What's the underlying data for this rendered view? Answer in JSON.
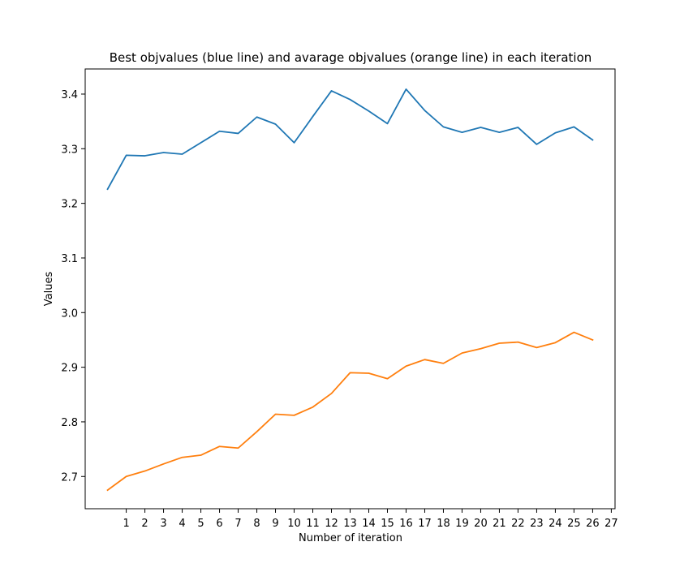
{
  "chart_data": {
    "type": "line",
    "title": "Best objvalues (blue line) and avarage objvalues (orange line) in each iteration",
    "xlabel": "Number of iteration",
    "ylabel": "Values",
    "x": [
      0,
      1,
      2,
      3,
      4,
      5,
      6,
      7,
      8,
      9,
      10,
      11,
      12,
      13,
      14,
      15,
      16,
      17,
      18,
      19,
      20,
      21,
      22,
      23,
      24,
      25,
      26
    ],
    "xticks": [
      "1",
      "2",
      "3",
      "4",
      "5",
      "6",
      "7",
      "8",
      "9",
      "10",
      "11",
      "12",
      "13",
      "14",
      "15",
      "16",
      "17",
      "18",
      "19",
      "20",
      "21",
      "22",
      "23",
      "24",
      "25",
      "26",
      "27"
    ],
    "xlim": [
      -1.2,
      27.2
    ],
    "ylim": [
      2.641,
      3.446
    ],
    "yticks": [
      2.7,
      2.8,
      2.9,
      3.0,
      3.1,
      3.2,
      3.3,
      3.4
    ],
    "grid": false,
    "series": [
      {
        "color": "#1f77b4",
        "values": [
          3.226,
          3.288,
          3.287,
          3.293,
          3.29,
          3.311,
          3.332,
          3.328,
          3.358,
          3.345,
          3.311,
          3.359,
          3.406,
          3.39,
          3.369,
          3.346,
          3.409,
          3.37,
          3.34,
          3.33,
          3.339,
          3.33,
          3.339,
          3.308,
          3.329,
          3.34,
          3.316
        ]
      },
      {
        "color": "#ff7f0e",
        "values": [
          2.675,
          2.7,
          2.71,
          2.723,
          2.735,
          2.739,
          2.755,
          2.752,
          2.782,
          2.814,
          2.812,
          2.827,
          2.852,
          2.89,
          2.889,
          2.879,
          2.902,
          2.914,
          2.907,
          2.926,
          2.934,
          2.944,
          2.946,
          2.936,
          2.945,
          2.964,
          2.95
        ]
      }
    ]
  }
}
